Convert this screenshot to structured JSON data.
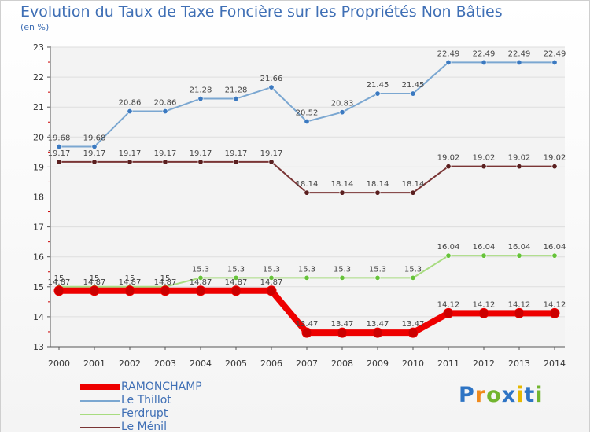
{
  "chart_data": {
    "type": "line",
    "title": "Evolution du Taux de Taxe Foncière sur les Propriétés Non Bâties",
    "ylabel": "(en %)",
    "ylim": [
      13,
      23
    ],
    "yticks": [
      13,
      14,
      15,
      16,
      17,
      18,
      19,
      20,
      21,
      22,
      23
    ],
    "categories": [
      "2000",
      "2001",
      "2002",
      "2003",
      "2004",
      "2005",
      "2006",
      "2007",
      "2008",
      "2009",
      "2010",
      "2011",
      "2012",
      "2013",
      "2014"
    ],
    "grid": "horizontal",
    "legend_position": "bottom-left",
    "series": [
      {
        "name": "Le Thillot",
        "color": "#7ba7d1",
        "marker": "#3b79c0",
        "labels": [
          "19.68",
          "19.68",
          "20.86",
          "20.86",
          "21.28",
          "21.28",
          "21.66",
          "20.52",
          "20.83",
          "21.45",
          "21.45",
          "22.49",
          "22.49",
          "22.49",
          "22.49"
        ],
        "values": [
          19.68,
          19.68,
          20.86,
          20.86,
          21.28,
          21.28,
          21.66,
          20.52,
          20.83,
          21.45,
          21.45,
          22.49,
          22.49,
          22.49,
          22.49
        ]
      },
      {
        "name": "Le Ménil",
        "color": "#7a3535",
        "marker": "#5a1f1f",
        "labels": [
          "19.17",
          "19.17",
          "19.17",
          "19.17",
          "19.17",
          "19.17",
          "19.17",
          "18.14",
          "18.14",
          "18.14",
          "18.14",
          "19.02",
          "19.02",
          "19.02",
          "19.02"
        ],
        "values": [
          19.17,
          19.17,
          19.17,
          19.17,
          19.17,
          19.17,
          19.17,
          18.14,
          18.14,
          18.14,
          18.14,
          19.02,
          19.02,
          19.02,
          19.02
        ]
      },
      {
        "name": "Ferdrupt",
        "color": "#a8dc80",
        "marker": "#66c23a",
        "labels": [
          "15",
          "15",
          "15",
          "15",
          "15.3",
          "15.3",
          "15.3",
          "15.3",
          "15.3",
          "15.3",
          "15.3",
          "16.04",
          "16.04",
          "16.04",
          "16.04"
        ],
        "values": [
          15,
          15,
          15,
          15,
          15.3,
          15.3,
          15.3,
          15.3,
          15.3,
          15.3,
          15.3,
          16.04,
          16.04,
          16.04,
          16.04
        ]
      },
      {
        "name": "RAMONCHAMP",
        "color": "#ee0000",
        "marker": "#cc0000",
        "labels": [
          "14.87",
          "14.87",
          "14.87",
          "14.87",
          "14.87",
          "14.87",
          "14.87",
          "13.47",
          "13.47",
          "13.47",
          "13.47",
          "14.12",
          "14.12",
          "14.12",
          "14.12"
        ],
        "values": [
          14.87,
          14.87,
          14.87,
          14.87,
          14.87,
          14.87,
          14.87,
          13.47,
          13.47,
          13.47,
          13.47,
          14.12,
          14.12,
          14.12,
          14.12
        ]
      }
    ],
    "legend": [
      {
        "name": "RAMONCHAMP",
        "color": "#ee0000"
      },
      {
        "name": "Le Thillot",
        "color": "#7ba7d1"
      },
      {
        "name": "Ferdrupt",
        "color": "#a8dc80"
      },
      {
        "name": "Le Ménil",
        "color": "#7a3535"
      }
    ]
  },
  "brand": {
    "letters": [
      "P",
      "r",
      "o",
      "x",
      "i",
      "t",
      "i"
    ],
    "colors": [
      "#2e74c4",
      "#f08a1c",
      "#72b52f",
      "#2e74c4",
      "#e6b800",
      "#2e74c4",
      "#72b52f"
    ]
  }
}
